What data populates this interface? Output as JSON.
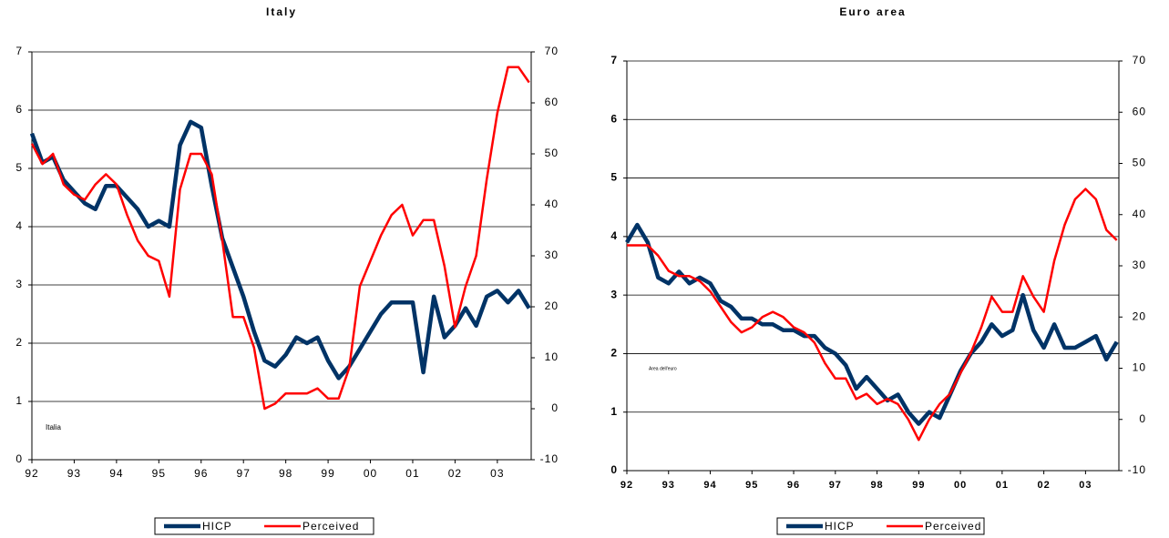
{
  "chart_data": [
    {
      "type": "line",
      "title": "Italy",
      "annotations": [
        "Italia"
      ],
      "legend": "bottom",
      "x": [
        1992,
        1992.25,
        1992.5,
        1992.75,
        1993,
        1993.25,
        1993.5,
        1993.75,
        1994,
        1994.25,
        1994.5,
        1994.75,
        1995,
        1995.25,
        1995.5,
        1995.75,
        1996,
        1996.25,
        1996.5,
        1996.75,
        1997,
        1997.25,
        1997.5,
        1997.75,
        1998,
        1998.25,
        1998.5,
        1998.75,
        1999,
        1999.25,
        1999.5,
        1999.75,
        2000,
        2000.25,
        2000.5,
        2000.75,
        2001,
        2001.25,
        2001.5,
        2001.75,
        2002,
        2002.25,
        2002.5,
        2002.75,
        2003,
        2003.25,
        2003.5,
        2003.75
      ],
      "series": [
        {
          "name": "HICP",
          "color": "#003366",
          "values": [
            5.6,
            5.1,
            5.2,
            4.8,
            4.6,
            4.4,
            4.3,
            4.7,
            4.7,
            4.5,
            4.3,
            4.0,
            4.1,
            4.0,
            5.4,
            5.8,
            5.7,
            4.7,
            3.8,
            3.3,
            2.8,
            2.2,
            1.7,
            1.6,
            1.8,
            2.1,
            2.0,
            2.1,
            1.7,
            1.4,
            1.6,
            1.9,
            2.2,
            2.5,
            2.7,
            2.7,
            2.7,
            1.5,
            2.8,
            2.1,
            2.3,
            2.6,
            2.3,
            2.8,
            2.9,
            2.7,
            2.9,
            2.6
          ]
        },
        {
          "name": "Perceived",
          "color": "#ff0000",
          "axis": "y2",
          "values": [
            52,
            48,
            50,
            44,
            42,
            41,
            44,
            46,
            44,
            38,
            33,
            30,
            29,
            22,
            43,
            50,
            50,
            46,
            33,
            18,
            18,
            12,
            0,
            1,
            3,
            3,
            3,
            4,
            2,
            2,
            8,
            24,
            29,
            34,
            38,
            40,
            34,
            37,
            37,
            28,
            16,
            24,
            30,
            45,
            58,
            67,
            67,
            64
          ]
        }
      ],
      "xlim": [
        1992,
        2003.8
      ],
      "xticks": [
        {
          "value": 1992,
          "label": "92"
        },
        {
          "value": 1993,
          "label": "93"
        },
        {
          "value": 1994,
          "label": "94"
        },
        {
          "value": 1995,
          "label": "95"
        },
        {
          "value": 1996,
          "label": "96"
        },
        {
          "value": 1997,
          "label": "97"
        },
        {
          "value": 1998,
          "label": "98"
        },
        {
          "value": 1999,
          "label": "99"
        },
        {
          "value": 2000,
          "label": "00"
        },
        {
          "value": 2001,
          "label": "01"
        },
        {
          "value": 2002,
          "label": "02"
        },
        {
          "value": 2003,
          "label": "03"
        }
      ],
      "ylim": [
        0,
        7
      ],
      "yticks": [
        0,
        1,
        2,
        3,
        4,
        5,
        6,
        7
      ],
      "y2lim": [
        -10,
        70
      ],
      "y2ticks": [
        -10,
        0,
        10,
        20,
        30,
        40,
        50,
        60,
        70
      ],
      "grid": true
    },
    {
      "type": "line",
      "title": "Euro area",
      "annotations": [
        "Area dell'euro"
      ],
      "legend": "bottom",
      "x": [
        1992,
        1992.25,
        1992.5,
        1992.75,
        1993,
        1993.25,
        1993.5,
        1993.75,
        1994,
        1994.25,
        1994.5,
        1994.75,
        1995,
        1995.25,
        1995.5,
        1995.75,
        1996,
        1996.25,
        1996.5,
        1996.75,
        1997,
        1997.25,
        1997.5,
        1997.75,
        1998,
        1998.25,
        1998.5,
        1998.75,
        1999,
        1999.25,
        1999.5,
        1999.75,
        2000,
        2000.25,
        2000.5,
        2000.75,
        2001,
        2001.25,
        2001.5,
        2001.75,
        2002,
        2002.25,
        2002.5,
        2002.75,
        2003,
        2003.25,
        2003.5,
        2003.75
      ],
      "series": [
        {
          "name": "HICP",
          "color": "#003366",
          "values": [
            3.9,
            4.2,
            3.9,
            3.3,
            3.2,
            3.4,
            3.2,
            3.3,
            3.2,
            2.9,
            2.8,
            2.6,
            2.6,
            2.5,
            2.5,
            2.4,
            2.4,
            2.3,
            2.3,
            2.1,
            2.0,
            1.8,
            1.4,
            1.6,
            1.4,
            1.2,
            1.3,
            1.0,
            0.8,
            1.0,
            0.9,
            1.3,
            1.7,
            2.0,
            2.2,
            2.5,
            2.3,
            2.4,
            3.0,
            2.4,
            2.1,
            2.5,
            2.1,
            2.1,
            2.2,
            2.3,
            1.9,
            2.2
          ]
        },
        {
          "name": "Perceived",
          "color": "#ff0000",
          "axis": "y2",
          "values": [
            34,
            34,
            34,
            32,
            29,
            28,
            28,
            27,
            25,
            22,
            19,
            17,
            18,
            20,
            21,
            20,
            18,
            17,
            15,
            11,
            8,
            8,
            4,
            5,
            3,
            4,
            3,
            0,
            -4,
            0,
            3,
            5,
            9,
            13,
            18,
            24,
            21,
            21,
            28,
            24,
            21,
            31,
            38,
            43,
            45,
            43,
            37,
            35
          ]
        }
      ],
      "xlim": [
        1992,
        2003.8
      ],
      "xticks": [
        {
          "value": 1992,
          "label": "92"
        },
        {
          "value": 1993,
          "label": "93"
        },
        {
          "value": 1994,
          "label": "94"
        },
        {
          "value": 1995,
          "label": "95"
        },
        {
          "value": 1996,
          "label": "96"
        },
        {
          "value": 1997,
          "label": "97"
        },
        {
          "value": 1998,
          "label": "98"
        },
        {
          "value": 1999,
          "label": "99"
        },
        {
          "value": 2000,
          "label": "00"
        },
        {
          "value": 2001,
          "label": "01"
        },
        {
          "value": 2002,
          "label": "02"
        },
        {
          "value": 2003,
          "label": "03"
        }
      ],
      "ylim": [
        0,
        7
      ],
      "yticks": [
        0,
        1,
        2,
        3,
        4,
        5,
        6,
        7
      ],
      "y2lim": [
        -10,
        70
      ],
      "y2ticks": [
        -10,
        0,
        10,
        20,
        30,
        40,
        50,
        60,
        70
      ],
      "grid": true
    }
  ]
}
